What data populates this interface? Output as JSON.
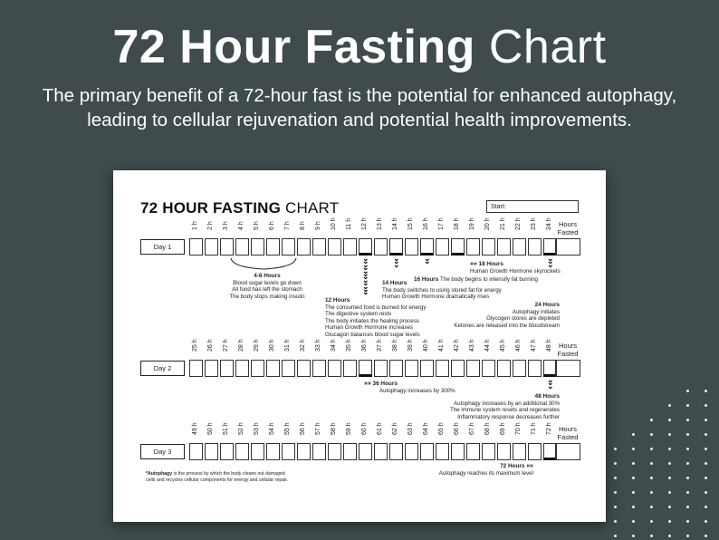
{
  "headline": {
    "bold": "72 Hour Fasting",
    "light": "Chart"
  },
  "subline": "The primary benefit of a 72-hour fast is the potential for enhanced autophagy, leading to cellular rejuvenation and potential health improvements.",
  "sheet": {
    "title_bold": "72 HOUR FASTING",
    "title_light": "CHART",
    "start_label": "Start:",
    "hours_fasted_top": "Hours",
    "hours_fasted_bottom": "Fasted",
    "days": [
      {
        "label": "Day 1",
        "hours": [
          "1 h",
          "2 h",
          "3 h",
          "4 h",
          "5 h",
          "6 h",
          "7 h",
          "8 h",
          "9 h",
          "10 h",
          "11 h",
          "12 h",
          "13 h",
          "14 h",
          "15 h",
          "16 h",
          "17 h",
          "18 h",
          "19 h",
          "20 h",
          "21 h",
          "22 h",
          "23 h",
          "24 h"
        ]
      },
      {
        "label": "Day 2",
        "hours": [
          "25 h",
          "26 h",
          "27 h",
          "28 h",
          "29 h",
          "30 h",
          "31 h",
          "32 h",
          "33 h",
          "34 h",
          "35 h",
          "36 h",
          "37 h",
          "38 h",
          "39 h",
          "40 h",
          "41 h",
          "42 h",
          "43 h",
          "44 h",
          "45 h",
          "46 h",
          "47 h",
          "48 h"
        ]
      },
      {
        "label": "Day 3",
        "hours": [
          "49 h",
          "50 h",
          "51 h",
          "52 h",
          "53 h",
          "54 h",
          "55 h",
          "56 h",
          "57 h",
          "58 h",
          "59 h",
          "60 h",
          "61 h",
          "62 h",
          "63 h",
          "64 h",
          "65 h",
          "66 h",
          "67 h",
          "68 h",
          "69 h",
          "70 h",
          "71 h",
          "72 h"
        ]
      }
    ],
    "notes": {
      "n4_8": {
        "title": "4-8 Hours",
        "lines": [
          "Blood sugar levels go down",
          "All food has left the stomach",
          "The body stops making insulin"
        ]
      },
      "n12": {
        "title": "12 Hours",
        "lines": [
          "The consumed food is burned for energy",
          "The digestive system rests",
          "The body initiates the healing process",
          "Human Growth Hormone increases",
          "Glucagon balances blood sugar levels"
        ]
      },
      "n14": {
        "title": "14 Hours",
        "lines": [
          "The body switches to using stored fat for energy",
          "Human Growth Hormone dramatically rises"
        ]
      },
      "n16": {
        "title": "16 Hours",
        "text": "The body begins to intensify fat burning"
      },
      "n18": {
        "title": "18 Hours",
        "text": "Human Growth Hormone skyrockets"
      },
      "n24": {
        "title": "24 Hours",
        "lines": [
          "Autophagy initiates",
          "Glycogen stores are depleted",
          "Ketones are released into the bloodstream"
        ]
      },
      "n36": {
        "title": "36 Hours",
        "text": "Autophagy increases by 300%"
      },
      "n48": {
        "title": "48 Hours",
        "lines": [
          "Autophagy increases by an additional 30%",
          "The immune system resets and regenerates",
          "Inflammatory response decreases further"
        ]
      },
      "n72": {
        "title": "72 Hours",
        "text": "Autophagy reaches its maximum level"
      }
    },
    "footnote": {
      "term": "*Autophagy",
      "text1": " is the process by which the body cleans out damaged",
      "text2": "cells and recycles cellular components for energy and cellular repair."
    }
  }
}
